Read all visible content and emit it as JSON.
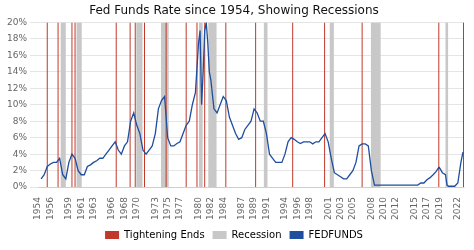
{
  "chart_data": {
    "type": "line",
    "title": "Fed Funds Rate since 1954, Showing Recessions",
    "x": [
      1954.5,
      1955.0,
      1955.5,
      1956.0,
      1956.5,
      1957.0,
      1957.5,
      1958.0,
      1958.5,
      1959.0,
      1959.5,
      1960.0,
      1960.5,
      1961.0,
      1961.5,
      1962.0,
      1962.5,
      1963.0,
      1963.5,
      1964.0,
      1964.5,
      1965.0,
      1965.5,
      1966.0,
      1966.5,
      1967.0,
      1967.5,
      1968.0,
      1968.5,
      1969.0,
      1969.5,
      1970.0,
      1970.5,
      1971.0,
      1971.5,
      1972.0,
      1972.5,
      1973.0,
      1973.5,
      1974.0,
      1974.5,
      1975.0,
      1975.5,
      1976.0,
      1976.5,
      1977.0,
      1977.5,
      1978.0,
      1978.5,
      1979.0,
      1979.5,
      1980.0,
      1980.25,
      1980.5,
      1980.75,
      1981.0,
      1981.25,
      1981.5,
      1981.75,
      1982.0,
      1982.5,
      1983.0,
      1983.5,
      1984.0,
      1984.5,
      1985.0,
      1985.5,
      1986.0,
      1986.5,
      1987.0,
      1987.5,
      1988.0,
      1988.5,
      1989.0,
      1989.5,
      1990.0,
      1990.5,
      1991.0,
      1991.5,
      1992.0,
      1992.5,
      1993.0,
      1993.5,
      1994.0,
      1994.5,
      1995.0,
      1995.5,
      1996.0,
      1996.5,
      1997.0,
      1997.5,
      1998.0,
      1998.5,
      1999.0,
      1999.5,
      2000.0,
      2000.5,
      2001.0,
      2001.5,
      2002.0,
      2002.5,
      2003.0,
      2003.5,
      2004.0,
      2004.5,
      2005.0,
      2005.5,
      2006.0,
      2006.5,
      2007.0,
      2007.5,
      2008.0,
      2008.5,
      2009.0,
      2009.5,
      2010.0,
      2010.5,
      2011.0,
      2011.5,
      2012.0,
      2012.5,
      2013.0,
      2013.5,
      2014.0,
      2014.5,
      2015.0,
      2015.5,
      2016.0,
      2016.5,
      2017.0,
      2017.5,
      2018.0,
      2018.5,
      2018.92,
      2019.0,
      2019.5,
      2020.0,
      2020.25,
      2020.5,
      2021.0,
      2021.5,
      2022.0,
      2022.5,
      2022.83
    ],
    "series": [
      {
        "name": "FEDFUNDS",
        "color": "#1f4e9e",
        "values": [
          1.0,
          1.5,
          2.5,
          2.8,
          3.0,
          3.0,
          3.5,
          1.5,
          1.0,
          3.0,
          4.0,
          3.5,
          2.0,
          1.5,
          1.5,
          2.5,
          2.7,
          3.0,
          3.2,
          3.5,
          3.5,
          4.0,
          4.5,
          5.0,
          5.5,
          4.5,
          4.0,
          5.0,
          5.5,
          8.0,
          9.0,
          7.5,
          6.5,
          4.5,
          4.0,
          4.5,
          5.0,
          6.5,
          9.5,
          10.5,
          11.0,
          6.0,
          5.0,
          5.0,
          5.3,
          5.5,
          6.5,
          7.5,
          8.0,
          10.0,
          11.5,
          17.5,
          19.0,
          10.0,
          14.0,
          19.0,
          20.0,
          17.5,
          14.0,
          13.0,
          9.5,
          9.0,
          10.0,
          11.0,
          10.5,
          8.5,
          7.5,
          6.5,
          5.8,
          6.0,
          7.0,
          7.5,
          8.0,
          9.5,
          9.0,
          8.0,
          8.0,
          6.5,
          4.0,
          3.5,
          3.0,
          3.0,
          3.0,
          4.0,
          5.5,
          6.0,
          5.8,
          5.5,
          5.3,
          5.5,
          5.5,
          5.5,
          5.25,
          5.5,
          5.5,
          6.0,
          6.5,
          5.5,
          3.5,
          1.75,
          1.5,
          1.25,
          1.0,
          1.0,
          1.5,
          2.0,
          3.0,
          5.0,
          5.25,
          5.25,
          5.0,
          2.0,
          0.25,
          0.25,
          0.25,
          0.25,
          0.25,
          0.25,
          0.25,
          0.25,
          0.25,
          0.25,
          0.25,
          0.25,
          0.25,
          0.25,
          0.25,
          0.5,
          0.5,
          0.9,
          1.15,
          1.5,
          1.9,
          2.4,
          2.4,
          1.75,
          1.5,
          0.25,
          0.1,
          0.1,
          0.1,
          0.5,
          3.0,
          4.25
        ]
      }
    ],
    "tightening_ends": {
      "name": "Tightening Ends",
      "color": "#c0392b",
      "x": [
        1955.5,
        1957.25,
        1959.5,
        1960.0,
        1966.67,
        1968.92,
        1969.75,
        1971.25,
        1974.75,
        1978.0,
        1979.75,
        1981.0,
        1984.42,
        1989.25,
        1995.25,
        2000.42,
        2006.5,
        2018.92,
        2022.92
      ]
    },
    "recessions": {
      "name": "Recession",
      "color": "#c8c8c8",
      "periods": [
        [
          1957.67,
          1958.5
        ],
        [
          1960.25,
          1961.08
        ],
        [
          1969.92,
          1970.92
        ],
        [
          1973.92,
          1975.17
        ],
        [
          1980.08,
          1980.67
        ],
        [
          1981.58,
          1982.92
        ],
        [
          1990.58,
          1991.17
        ],
        [
          2001.25,
          2001.92
        ],
        [
          2007.92,
          2009.5
        ],
        [
          2020.0,
          2020.42
        ]
      ]
    },
    "xlim": [
      1954,
      2023
    ],
    "xticks": [
      1954,
      1956,
      1959,
      1961,
      1963,
      1966,
      1968,
      1970,
      1973,
      1975,
      1977,
      1980,
      1982,
      1984,
      1987,
      1989,
      1991,
      1994,
      1996,
      1998,
      2001,
      2003,
      2005,
      2008,
      2010,
      2012,
      2015,
      2017,
      2019,
      2022
    ],
    "ylim": [
      0,
      20
    ],
    "yticks": [
      {
        "value": 0,
        "label": "0%"
      },
      {
        "value": 2,
        "label": "2%"
      },
      {
        "value": 4,
        "label": "4%"
      },
      {
        "value": 6,
        "label": "6%"
      },
      {
        "value": 8,
        "label": "8%"
      },
      {
        "value": 10,
        "label": "10%"
      },
      {
        "value": 12,
        "label": "12%"
      },
      {
        "value": 14,
        "label": "14%"
      },
      {
        "value": 16,
        "label": "16%"
      },
      {
        "value": 18,
        "label": "18%"
      },
      {
        "value": 20,
        "label": "20%"
      }
    ],
    "grid": "y",
    "legend": "bottom"
  }
}
